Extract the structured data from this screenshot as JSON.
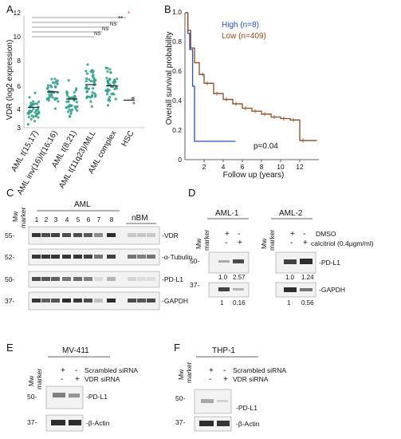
{
  "panels": {
    "a": "A",
    "b": "B",
    "c": "C",
    "d": "D",
    "e": "E",
    "f": "F"
  },
  "scatter": {
    "ylabel": "VDR (log2 expression)",
    "yticks": [
      "3",
      "4",
      "6",
      "8",
      "10",
      "12"
    ],
    "categories": [
      "AML t(15;17)",
      "AML inv(16)/t(16;16)",
      "AML t(8;21)",
      "AML t(11q23)/MLL",
      "AML complex",
      "HSC"
    ],
    "sig": [
      "*",
      "**",
      "NS",
      "NS",
      "NS"
    ],
    "colors": {
      "points": "#2e9c8a",
      "mean": "#222222",
      "sig_red": "#e0403a"
    }
  },
  "chart_data": {
    "type": "line",
    "ylabel": "Overall survival probability",
    "xlabel": "Follow up (years)",
    "xticks": [
      "2",
      "4",
      "6",
      "8",
      "10",
      "12"
    ],
    "yticks": [
      "0",
      "0.2",
      "0.4",
      "0.6",
      "0.8",
      "1.0"
    ],
    "xlim": [
      0,
      14
    ],
    "ylim": [
      0,
      1
    ],
    "legend_position": "top-right",
    "annotation": "p=0.04",
    "series": [
      {
        "name": "High (n=8)",
        "color": "#2a4fbf",
        "x": [
          0,
          0.3,
          0.5,
          0.8,
          1.0,
          5.3
        ],
        "y": [
          1.0,
          0.86,
          0.75,
          0.5,
          0.125,
          0.125
        ]
      },
      {
        "name": "Low (n=409)",
        "color": "#8b4a22",
        "x": [
          0,
          0.3,
          0.6,
          1.0,
          1.5,
          2.0,
          3.0,
          4.0,
          5.0,
          6.0,
          7.0,
          8.0,
          9.0,
          10.0,
          11.0,
          12.0,
          13.8
        ],
        "y": [
          1.0,
          0.88,
          0.76,
          0.66,
          0.58,
          0.52,
          0.45,
          0.41,
          0.38,
          0.35,
          0.33,
          0.31,
          0.29,
          0.28,
          0.27,
          0.13,
          0.13
        ]
      }
    ]
  },
  "blot_c": {
    "group_aml": "AML",
    "group_nbm": "nBM",
    "mw_label": "Mw",
    "marker_label": "marker",
    "lanes": [
      "1",
      "2",
      "3",
      "4",
      "5",
      "6",
      "7",
      "8"
    ],
    "rows": [
      {
        "mw": "55-",
        "label": "-VDR",
        "bands": [
          0.9,
          0.8,
          0.85,
          0.8,
          0.8,
          0.75,
          0.5,
          0.95,
          0.2,
          0.2,
          0.2
        ]
      },
      {
        "mw": "52-",
        "label": "-α-Tubulin",
        "bands": [
          0.9,
          0.9,
          0.9,
          0.9,
          0.9,
          0.85,
          0.6,
          0.85,
          0.6,
          0.55,
          0.6
        ]
      },
      {
        "mw": "50-",
        "label": "-PD-L1",
        "bands": [
          0.8,
          0.75,
          0.7,
          0.6,
          0.65,
          0.55,
          0.1,
          0.3,
          0.15,
          0.1,
          0.1
        ]
      },
      {
        "mw": "37-",
        "label": "-GAPDH",
        "bands": [
          0.9,
          0.7,
          0.75,
          0.95,
          0.9,
          0.8,
          0.25,
          0.95,
          0.8,
          0.75,
          0.8
        ]
      }
    ]
  },
  "blot_d": {
    "aml1": "AML-1",
    "aml2": "AML-2",
    "mw_label": "Mw",
    "marker_label": "marker",
    "dmso": "DMSO",
    "calcitriol": "calcitriol (0.4µgm/ml)",
    "dmso_signs": [
      "+",
      "-"
    ],
    "calc_signs": [
      "-",
      "+"
    ],
    "pdl1_label": "-PD-L1",
    "gapdh_label": "-GAPDH",
    "mw_50": "50-",
    "mw_37": "37-",
    "aml1_pdl1_q": [
      "1.0",
      "2.57"
    ],
    "aml1_gapdh_q": [
      "1",
      "0.16"
    ],
    "aml2_pdl1_q": [
      "1.0",
      "1.24"
    ],
    "aml2_gapdh_q": [
      "1",
      "0.56"
    ]
  },
  "blot_e": {
    "title": "MV-411",
    "mw_label": "Mw",
    "marker_label": "marker",
    "scr_signs": [
      "+",
      "-"
    ],
    "vdr_signs": [
      "-",
      "+"
    ],
    "scr_label": "Scrambled siRNA",
    "vdr_label": "VDR siRNA",
    "pdl1_label": "-PD-L1",
    "actin_label": "-β-Actin",
    "mw_50": "50-",
    "mw_37": "37-"
  },
  "blot_f": {
    "title": "THP-1",
    "mw_label": "Mw",
    "marker_label": "marker",
    "scr_signs": [
      "+",
      "-"
    ],
    "vdr_signs": [
      "-",
      "+"
    ],
    "scr_label": "Scrambled siRNA",
    "vdr_label": "VDR siRNA",
    "pdl1_label": "-PD-L1",
    "actin_label": "-β-Actin",
    "mw_50": "50-",
    "mw_37": "37-"
  }
}
